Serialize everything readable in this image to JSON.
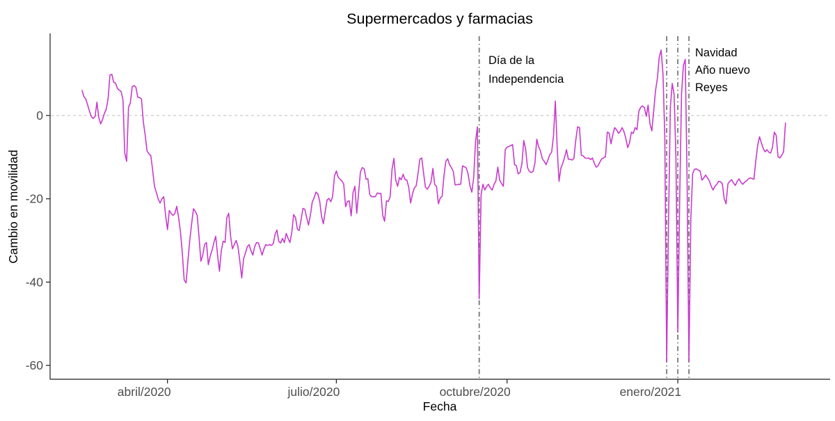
{
  "title": "Supermercados y farmacias",
  "x_axis": {
    "label": "Fecha"
  },
  "y_axis": {
    "label": "Cambio en movilidad"
  },
  "annotations": {
    "independence_line1": "Día de la",
    "independence_line2": "Independencia",
    "navidad": "Navidad",
    "ano_nuevo": "Año nuevo",
    "reyes": "Reyes"
  },
  "chart_data": {
    "type": "line",
    "title": "Supermercados y farmacias",
    "xlabel": "Fecha",
    "ylabel": "Cambio en movilidad",
    "x_start_date": "2020-02-15",
    "x_step_days": 1,
    "ylim": [
      -63,
      20
    ],
    "grid": false,
    "legend": false,
    "line_color": "#C93ACD",
    "axis_color": "#1a1a1a",
    "tick_text_color": "#4D4D4D",
    "event_line_color": "#7D7D7D",
    "reference_line": {
      "y": 0,
      "style": "dashed",
      "color": "#CBCBCB"
    },
    "y_ticks": [
      {
        "value": 0,
        "label": "0"
      },
      {
        "value": -20,
        "label": "-20"
      },
      {
        "value": -40,
        "label": "-40"
      },
      {
        "value": -60,
        "label": "-60"
      }
    ],
    "x_ticks": [
      {
        "day_index": 46,
        "date": "2020-04-01",
        "label": "abril/2020"
      },
      {
        "day_index": 137,
        "date": "2020-07-01",
        "label": "julio/2020"
      },
      {
        "day_index": 229,
        "date": "2020-10-01",
        "label": "octubre/2020"
      },
      {
        "day_index": 321,
        "date": "2021-01-01",
        "label": "enero/2021"
      }
    ],
    "event_lines": [
      {
        "day_index": 214,
        "name": "dia-de-la-independencia",
        "label": "Día de la Independencia"
      },
      {
        "day_index": 315,
        "name": "navidad",
        "label": "Navidad"
      },
      {
        "day_index": 321,
        "name": "ano-nuevo",
        "label": "Año nuevo"
      },
      {
        "day_index": 327,
        "name": "reyes",
        "label": "Reyes"
      }
    ],
    "values": [
      6,
      4.5,
      4,
      2.5,
      1,
      -0.3,
      -0.7,
      -0.2,
      3.2,
      -0.5,
      -2,
      -1,
      0.5,
      1.5,
      4,
      9.7,
      9.9,
      8,
      7.8,
      6.5,
      6.1,
      5.8,
      3.8,
      -9,
      -11,
      2,
      3,
      6.9,
      7.2,
      6.8,
      4.4,
      4.3,
      4,
      -1.5,
      -4.8,
      -8.5,
      -9.2,
      -9.6,
      -13,
      -17,
      -18.5,
      -20,
      -21,
      -20,
      -19.5,
      -24,
      -27.4,
      -22.8,
      -23.5,
      -24,
      -23.5,
      -21.8,
      -24.5,
      -28,
      -33,
      -39.5,
      -40.2,
      -35,
      -30,
      -26,
      -22.4,
      -23,
      -24,
      -29,
      -35,
      -33.5,
      -31,
      -30.5,
      -35.8,
      -33.8,
      -32.4,
      -30.5,
      -29,
      -33.5,
      -37.4,
      -32.5,
      -30.2,
      -30.5,
      -24.5,
      -23.5,
      -29,
      -32,
      -31,
      -30,
      -31.5,
      -35,
      -39,
      -34.5,
      -33,
      -31.5,
      -31,
      -32.5,
      -33.5,
      -31.5,
      -30.5,
      -30.6,
      -32,
      -33.5,
      -32,
      -31,
      -31.2,
      -31,
      -31.2,
      -30.8,
      -28.5,
      -27.5,
      -30.3,
      -30.6,
      -29.5,
      -30.5,
      -28.3,
      -29.5,
      -30.5,
      -28,
      -23.8,
      -24.5,
      -27.3,
      -27.6,
      -25,
      -22.3,
      -22.5,
      -24.5,
      -26.3,
      -24,
      -20.8,
      -19.8,
      -18.4,
      -18.8,
      -20.5,
      -24.1,
      -26,
      -23,
      -20.3,
      -19.9,
      -20.7,
      -19.5,
      -14.5,
      -13.3,
      -14.8,
      -15.3,
      -15.7,
      -16.5,
      -21.9,
      -20.6,
      -20.5,
      -24.1,
      -18.5,
      -17,
      -23.5,
      -18.5,
      -13.5,
      -12.5,
      -12.8,
      -15.3,
      -15.2,
      -19,
      -19.5,
      -19.5,
      -19.5,
      -18.6,
      -18.7,
      -18.7,
      -24,
      -25.4,
      -20.5,
      -20.6,
      -19.5,
      -12.9,
      -10.3,
      -15.5,
      -17,
      -14.9,
      -15.4,
      -14.1,
      -15.4,
      -15.5,
      -17.2,
      -21,
      -18.9,
      -17.4,
      -16.9,
      -14,
      -10.5,
      -10.2,
      -13.8,
      -17.2,
      -17.7,
      -17,
      -16,
      -12.7,
      -16.5,
      -17.1,
      -21.2,
      -19.8,
      -19.4,
      -14.4,
      -11,
      -10.4,
      -11.8,
      -12.5,
      -13.4,
      -16.7,
      -16.6,
      -16.5,
      -16.5,
      -12.1,
      -12.3,
      -12.6,
      -14,
      -16.9,
      -18.4,
      -15,
      -6.3,
      -2.7,
      -44,
      -19,
      -16.5,
      -17.9,
      -17,
      -16.5,
      -17.4,
      -17.9,
      -16.5,
      -15.7,
      -12.4,
      -15.5,
      -16.3,
      -17,
      -8.2,
      -7.6,
      -7.4,
      -7.2,
      -7,
      -11.8,
      -12,
      -14,
      -13.7,
      -11.5,
      -6,
      -8,
      -12.5,
      -13.4,
      -13.7,
      -13.4,
      -11.5,
      -5.7,
      -7.5,
      -8.5,
      -10.4,
      -11,
      -11.8,
      -10.7,
      -9.4,
      -8.8,
      -5,
      3.5,
      -7.9,
      -15.8,
      -12.6,
      -11.5,
      -10,
      -8.2,
      -10.5,
      -10.5,
      -10.7,
      -10.3,
      -6,
      -2.7,
      -2.9,
      -9.5,
      -9.7,
      -10.2,
      -10.3,
      -10.2,
      -10.6,
      -10.2,
      -11.5,
      -12.4,
      -12.1,
      -11.2,
      -10.4,
      -10.2,
      -9.9,
      -4,
      -4.2,
      -6.8,
      -4.5,
      -2.9,
      -3.4,
      -4.3,
      -3.8,
      -2.9,
      -3.9,
      -5.5,
      -7.7,
      -6.5,
      -4,
      -4.3,
      -2.9,
      -3.4,
      1,
      2,
      2.3,
      1.9,
      -0.2,
      2.5,
      -2,
      -3.7,
      1,
      6,
      9,
      14,
      15.7,
      10,
      -5,
      -59,
      -25,
      2,
      7.7,
      5,
      -10,
      -52,
      -20,
      5,
      12,
      13.5,
      -15,
      -59,
      -25,
      -14,
      -12.9,
      -12.8,
      -13.1,
      -13.3,
      -15.5,
      -15,
      -14.3,
      -15,
      -15.7,
      -17,
      -17.9,
      -17,
      -16.5,
      -15.8,
      -15.9,
      -16.4,
      -20,
      -21.2,
      -16.4,
      -15.8,
      -15.4,
      -16.2,
      -16.8,
      -15.8,
      -15.2,
      -16,
      -16.5,
      -16,
      -15.7,
      -15.2,
      -15,
      -15.1,
      -15.3,
      -11,
      -7.2,
      -5.1,
      -6.5,
      -7.9,
      -8.7,
      -8.2,
      -8.8,
      -9,
      -7.7,
      -4,
      -4.8,
      -9.9,
      -10.2,
      -9.5,
      -8.7,
      -1.8
    ]
  }
}
